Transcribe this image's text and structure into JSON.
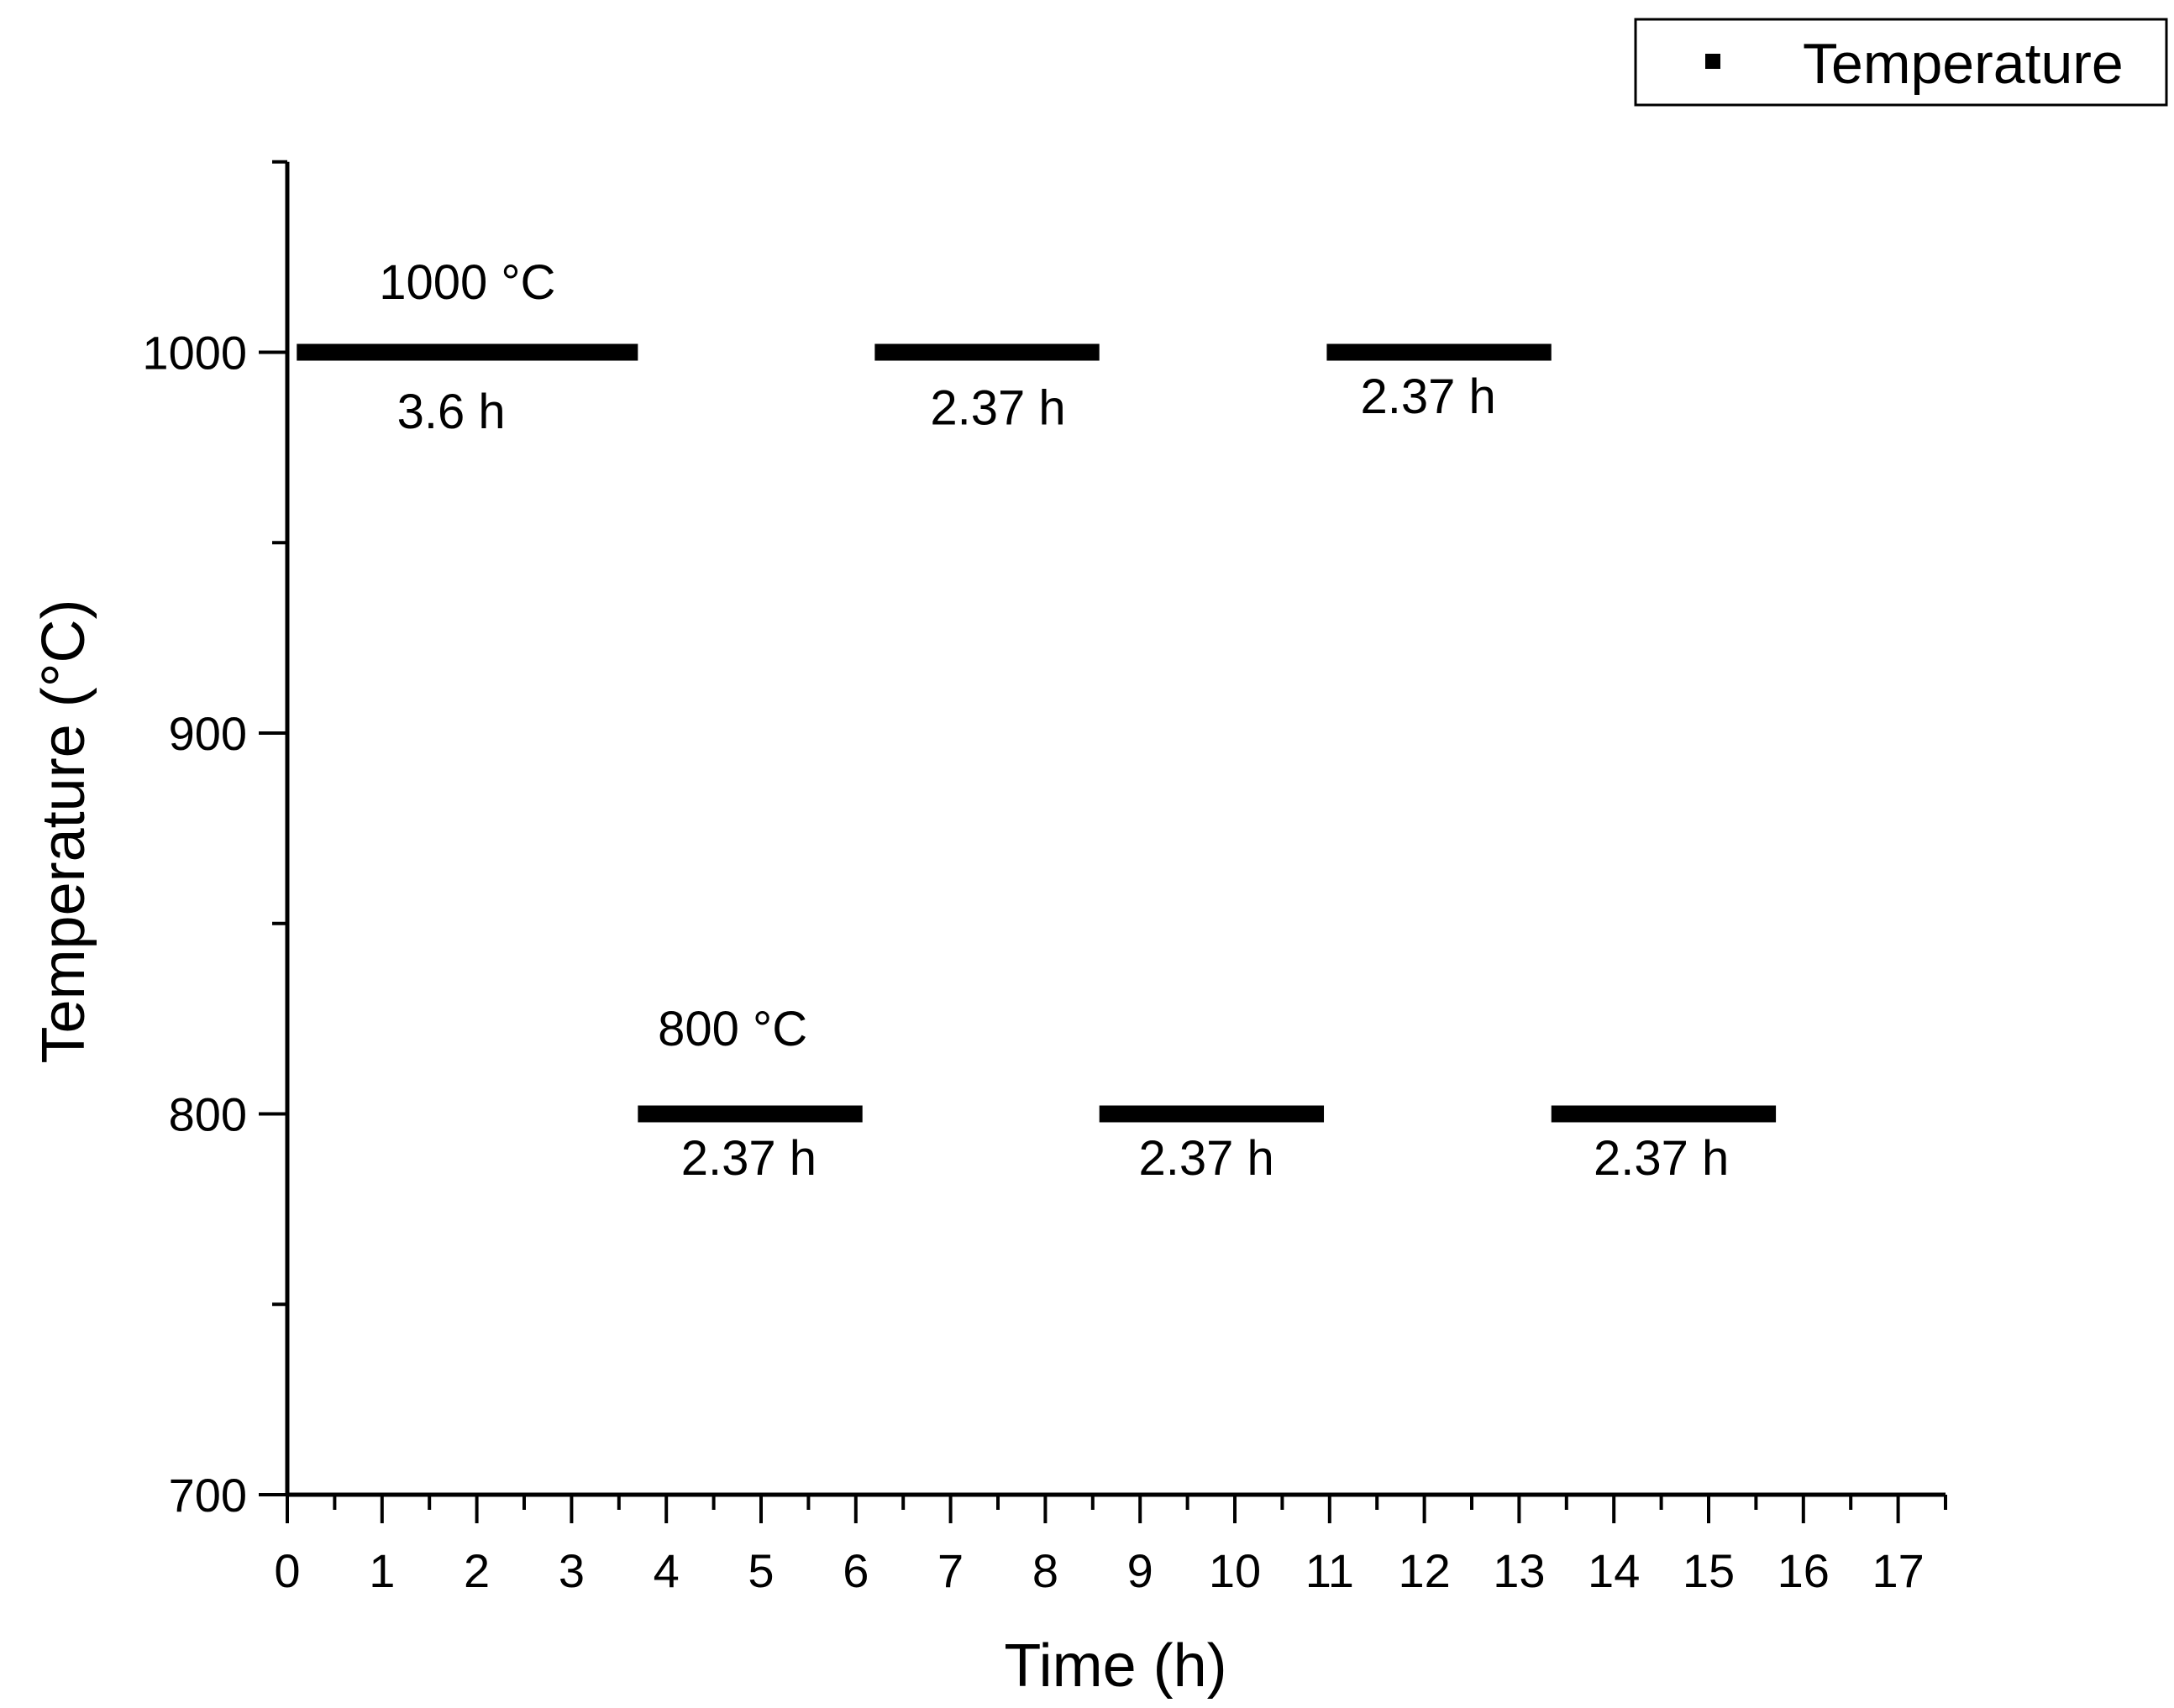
{
  "chart_data": {
    "type": "line",
    "title": "",
    "xlabel": "Time (h)",
    "ylabel": "Temperature (°C)",
    "xlim": [
      0,
      17.5
    ],
    "ylim": [
      700,
      1050
    ],
    "x_ticks": [
      0,
      1,
      2,
      3,
      4,
      5,
      6,
      7,
      8,
      9,
      10,
      11,
      12,
      13,
      14,
      15,
      16,
      17
    ],
    "y_ticks": [
      700,
      800,
      900,
      1000
    ],
    "grid": false,
    "legend": {
      "position": "top-right",
      "entries": [
        "Temperature"
      ]
    },
    "series": [
      {
        "name": "Temperature",
        "segments": [
          {
            "x_start": 0.1,
            "x_end": 3.7,
            "y": 1000
          },
          {
            "x_start": 3.7,
            "x_end": 6.07,
            "y": 800
          },
          {
            "x_start": 6.2,
            "x_end": 8.57,
            "y": 1000
          },
          {
            "x_start": 8.57,
            "x_end": 10.94,
            "y": 800
          },
          {
            "x_start": 10.97,
            "x_end": 13.34,
            "y": 1000
          },
          {
            "x_start": 13.34,
            "x_end": 15.71,
            "y": 800
          }
        ]
      }
    ],
    "annotations": [
      {
        "text": "1000 °C",
        "x": 1.9,
        "y": 1014
      },
      {
        "text": "3.6 h",
        "x": 1.73,
        "y": 980
      },
      {
        "text": "2.37 h",
        "x": 7.5,
        "y": 981
      },
      {
        "text": "2.37 h",
        "x": 12.04,
        "y": 984
      },
      {
        "text": "800 °C",
        "x": 4.7,
        "y": 818
      },
      {
        "text": "2.37 h",
        "x": 4.87,
        "y": 784
      },
      {
        "text": "2.37 h",
        "x": 9.7,
        "y": 784
      },
      {
        "text": "2.37 h",
        "x": 14.5,
        "y": 784
      }
    ]
  }
}
